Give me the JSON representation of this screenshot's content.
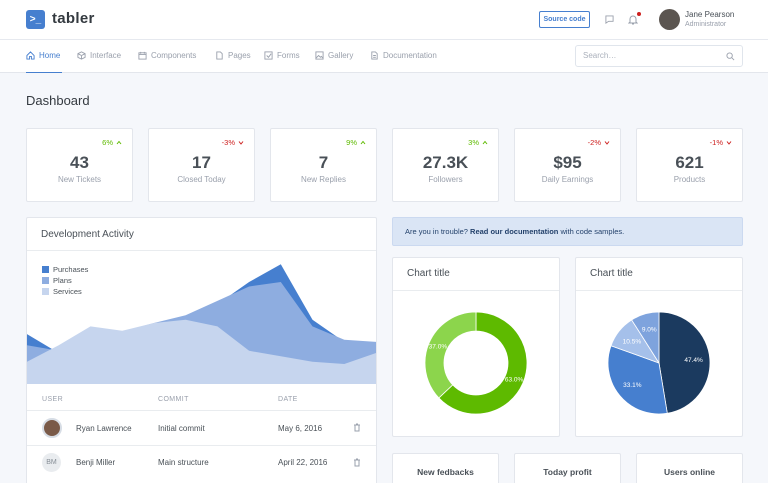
{
  "header": {
    "logo_icon": ">_",
    "logo_text": "tabler",
    "source_code_label": "Source code",
    "user_name": "Jane Pearson",
    "user_role": "Administrator"
  },
  "nav": {
    "items": [
      {
        "label": "Home",
        "icon": "home-icon"
      },
      {
        "label": "Interface",
        "icon": "box-icon"
      },
      {
        "label": "Components",
        "icon": "calendar-icon"
      },
      {
        "label": "Pages",
        "icon": "file-icon"
      },
      {
        "label": "Forms",
        "icon": "check-square-icon"
      },
      {
        "label": "Gallery",
        "icon": "image-icon"
      },
      {
        "label": "Documentation",
        "icon": "file-text-icon"
      }
    ],
    "search_placeholder": "Search…"
  },
  "page": {
    "title": "Dashboard"
  },
  "stats": [
    {
      "value": "43",
      "label": "New Tickets",
      "change": "6%",
      "dir": "up"
    },
    {
      "value": "17",
      "label": "Closed Today",
      "change": "-3%",
      "dir": "down"
    },
    {
      "value": "7",
      "label": "New Replies",
      "change": "9%",
      "dir": "up"
    },
    {
      "value": "27.3K",
      "label": "Followers",
      "change": "3%",
      "dir": "up"
    },
    {
      "value": "$95",
      "label": "Daily Earnings",
      "change": "-2%",
      "dir": "down"
    },
    {
      "value": "621",
      "label": "Products",
      "change": "-1%",
      "dir": "down"
    }
  ],
  "activity": {
    "title": "Development Activity",
    "columns": [
      "USER",
      "COMMIT",
      "DATE"
    ],
    "rows": [
      {
        "user": "Ryan Lawrence",
        "initials": "",
        "commit": "Initial commit",
        "date": "May 6, 2016"
      },
      {
        "user": "Benji Miller",
        "initials": "BM",
        "commit": "Main structure",
        "date": "April 22, 2016"
      }
    ]
  },
  "alert": {
    "prefix": "Are you in trouble? ",
    "link": "Read our documentation",
    "suffix": " with code samples."
  },
  "chart_data": [
    {
      "type": "area",
      "title": "",
      "x": [
        0,
        1,
        2,
        3,
        4,
        5,
        6,
        7,
        8,
        9,
        10,
        11
      ],
      "series": [
        {
          "name": "Purchases",
          "color": "#467fcf",
          "values": [
            45,
            28,
            24,
            30,
            32,
            40,
            72,
            92,
            108,
            58,
            38,
            36
          ]
        },
        {
          "name": "Plans",
          "color": "#8eade0",
          "values": [
            35,
            30,
            42,
            47,
            55,
            62,
            75,
            88,
            92,
            52,
            40,
            38
          ]
        },
        {
          "name": "Services",
          "color": "#c6d5ee",
          "values": [
            20,
            35,
            52,
            48,
            55,
            58,
            52,
            30,
            25,
            20,
            18,
            28
          ]
        }
      ],
      "legend": "top-left"
    },
    {
      "type": "pie",
      "title": "Chart title",
      "donut": true,
      "labels": [
        "63.0%",
        "37.0%"
      ],
      "values": [
        63.0,
        37.0
      ],
      "colors": [
        "#5eba00",
        "#8cd54c"
      ]
    },
    {
      "type": "pie",
      "title": "Chart title",
      "donut": false,
      "labels": [
        "47.4%",
        "33.1%",
        "10.5%",
        "9.0%"
      ],
      "values": [
        47.4,
        33.1,
        10.5,
        9.0
      ],
      "colors": [
        "#1b3a5f",
        "#467fcf",
        "#a5c0ea",
        "#7ea3dd"
      ]
    }
  ],
  "bottom_cards": [
    {
      "label": "New fedbacks"
    },
    {
      "label": "Today profit"
    },
    {
      "label": "Users online"
    }
  ]
}
